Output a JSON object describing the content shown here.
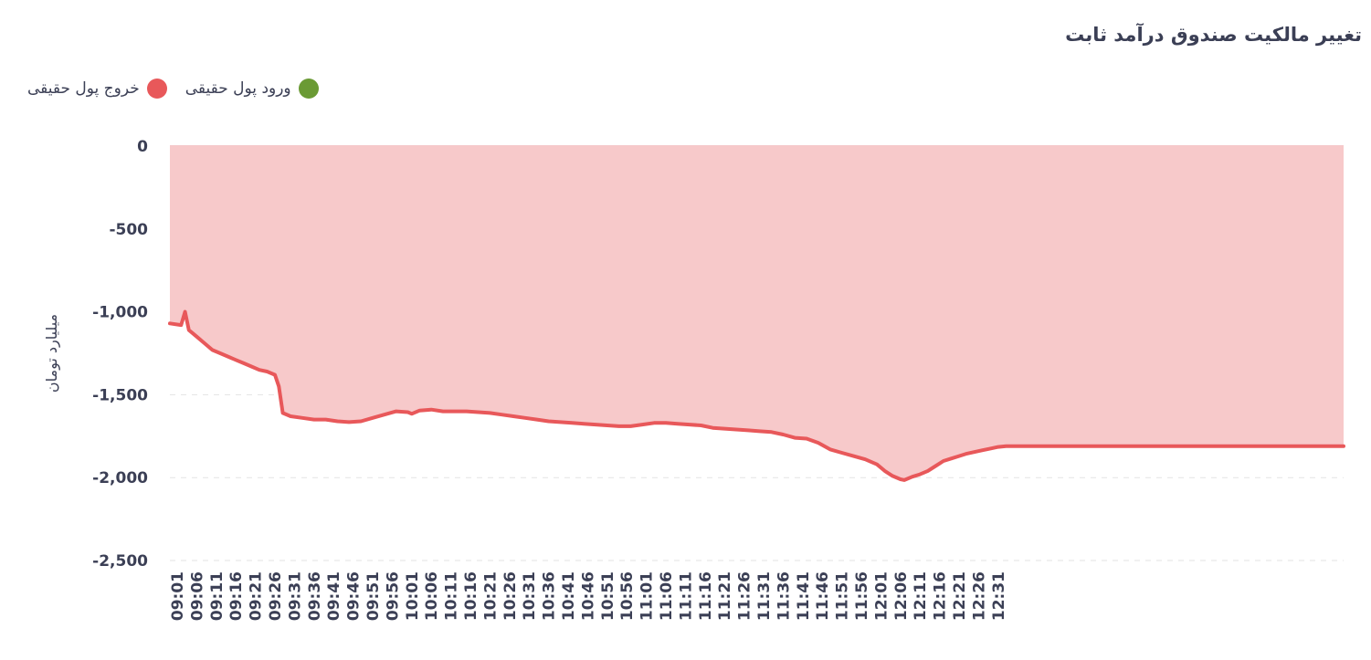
{
  "chart_data": {
    "type": "area",
    "title": "تغییر مالکیت صندوق درآمد ثابت",
    "ylabel": "میلیارد تومان",
    "xlabel": "",
    "ylim": [
      -2500,
      0
    ],
    "yticks": [
      0,
      -500,
      -1000,
      -1500,
      -2000,
      -2500
    ],
    "ytick_labels": [
      "0",
      "-500",
      "-1,000",
      "-1,500",
      "-2,000",
      "-2,500"
    ],
    "grid": true,
    "legend_position": "top-left",
    "legend": [
      {
        "label": "خروج پول حقیقی",
        "color": "#e8585a"
      },
      {
        "label": "ورود پول حقیقی",
        "color": "#6a9a34"
      }
    ],
    "x_tick_labels": [
      "09:01",
      "09:06",
      "09:11",
      "09:16",
      "09:21",
      "09:26",
      "09:31",
      "09:36",
      "09:41",
      "09:46",
      "09:51",
      "09:56",
      "10:01",
      "10:06",
      "10:11",
      "10:16",
      "10:21",
      "10:26",
      "10:31",
      "10:36",
      "10:41",
      "10:46",
      "10:51",
      "10:56",
      "11:01",
      "11:06",
      "11:11",
      "11:16",
      "11:21",
      "11:26",
      "11:31",
      "11:36",
      "11:41",
      "11:46",
      "11:51",
      "11:56",
      "12:01",
      "12:06",
      "12:11",
      "12:16",
      "12:21",
      "12:26",
      "12:31"
    ],
    "series": [
      {
        "name": "خروج پول حقیقی",
        "color": "#e8585a",
        "fill_color": "#f7c9ca",
        "x": [
          "09:01",
          "09:02",
          "09:03",
          "09:04",
          "09:05",
          "09:06",
          "09:08",
          "09:10",
          "09:12",
          "09:14",
          "09:16",
          "09:18",
          "09:20",
          "09:22",
          "09:24",
          "09:26",
          "09:27",
          "09:28",
          "09:30",
          "09:33",
          "09:36",
          "09:39",
          "09:42",
          "09:45",
          "09:48",
          "09:51",
          "09:54",
          "09:57",
          "10:00",
          "10:01",
          "10:03",
          "10:06",
          "10:09",
          "10:12",
          "10:15",
          "10:18",
          "10:21",
          "10:24",
          "10:27",
          "10:30",
          "10:33",
          "10:36",
          "10:39",
          "10:42",
          "10:45",
          "10:48",
          "10:51",
          "10:54",
          "10:57",
          "11:00",
          "11:03",
          "11:06",
          "11:09",
          "11:12",
          "11:15",
          "11:18",
          "11:21",
          "11:24",
          "11:27",
          "11:30",
          "11:33",
          "11:36",
          "11:39",
          "11:42",
          "11:45",
          "11:48",
          "11:51",
          "11:54",
          "11:57",
          "12:00",
          "12:02",
          "12:04",
          "12:06",
          "12:07",
          "12:09",
          "12:11",
          "12:13",
          "12:15",
          "12:17",
          "12:19",
          "12:21",
          "12:23",
          "12:25",
          "12:27",
          "12:29",
          "12:31",
          "12:33",
          "12:35"
        ],
        "values": [
          -1070,
          -1080,
          -1000,
          -1110,
          -1130,
          -1150,
          -1190,
          -1230,
          -1250,
          -1270,
          -1290,
          -1310,
          -1330,
          -1350,
          -1360,
          -1380,
          -1450,
          -1610,
          -1630,
          -1640,
          -1650,
          -1650,
          -1660,
          -1665,
          -1660,
          -1640,
          -1620,
          -1600,
          -1605,
          -1615,
          -1595,
          -1590,
          -1600,
          -1600,
          -1600,
          -1605,
          -1610,
          -1620,
          -1630,
          -1640,
          -1650,
          -1660,
          -1665,
          -1670,
          -1675,
          -1680,
          -1685,
          -1690,
          -1690,
          -1680,
          -1670,
          -1670,
          -1675,
          -1680,
          -1685,
          -1700,
          -1705,
          -1710,
          -1715,
          -1720,
          -1725,
          -1740,
          -1760,
          -1765,
          -1790,
          -1830,
          -1850,
          -1870,
          -1890,
          -1920,
          -1960,
          -1990,
          -2010,
          -2015,
          -1995,
          -1980,
          -1960,
          -1930,
          -1900,
          -1885,
          -1870,
          -1855,
          -1845,
          -1835,
          -1825,
          -1815,
          -1810,
          -1810
        ]
      },
      {
        "name": "ورود پول حقیقی",
        "color": "#6a9a34",
        "x": [],
        "values": []
      }
    ]
  }
}
